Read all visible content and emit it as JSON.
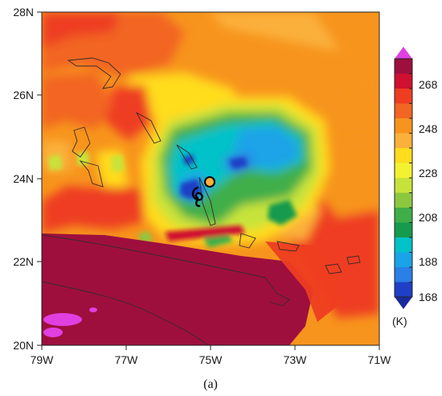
{
  "map": {
    "x_tick_labels": [
      "79W",
      "77W",
      "75W",
      "73W",
      "71W"
    ],
    "y_tick_labels": [
      "28N",
      "26N",
      "24N",
      "22N",
      "20N"
    ],
    "colorbar": {
      "tick_labels": [
        "268",
        "248",
        "228",
        "208",
        "188",
        "168"
      ],
      "unit_label": "(K)",
      "colors": [
        "#9e0f3e",
        "#cf1030",
        "#ee3d21",
        "#f26522",
        "#f7941d",
        "#fbb03b",
        "#ffdc1e",
        "#f2f230",
        "#c7e33b",
        "#8cc83f",
        "#3fae49",
        "#169a4d",
        "#00c2c8",
        "#1aa3e8",
        "#2b7fe6",
        "#1f3fc6"
      ],
      "over_color": "#e040e0",
      "under_color": "#1a2a9c"
    },
    "caption": "(a)",
    "storm_symbol": "hurricane-symbol",
    "eye_marker": "circle-marker"
  }
}
